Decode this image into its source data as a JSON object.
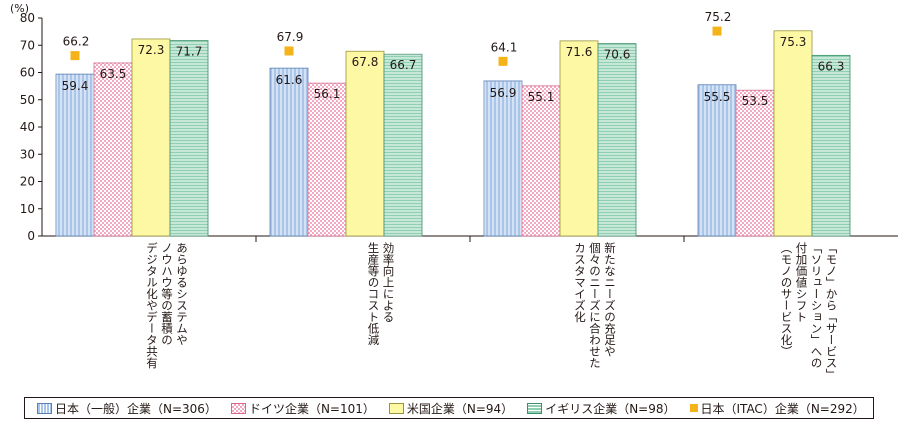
{
  "chart_data": {
    "type": "bar",
    "unit_label": "(%)",
    "ylim": [
      0,
      80
    ],
    "yticks": [
      0,
      10,
      20,
      30,
      40,
      50,
      60,
      70,
      80
    ],
    "categories": [
      [
        "あらゆるシステムや",
        "ノウハウ等の蓄積の",
        "デジタル化やデータ共有"
      ],
      [
        "効率向上による",
        "生産等のコスト低減"
      ],
      [
        "新たなニーズの充足や",
        "個々のニーズに合わせた",
        "カスタマイズ化"
      ],
      [
        "「モノ」から「サービス」",
        "「ソリューション」への",
        "付加価値シフト",
        "（モノのサービス化）"
      ]
    ],
    "series": [
      {
        "name": "日本（一般）企業（N=306）",
        "type": "bar",
        "color": "#a9c6ea",
        "values": [
          59.4,
          61.6,
          56.9,
          55.5
        ]
      },
      {
        "name": "ドイツ企業（N=101）",
        "type": "bar",
        "color": "#fcd7e4",
        "values": [
          63.5,
          56.1,
          55.1,
          53.5
        ]
      },
      {
        "name": "米国企業（N=94）",
        "type": "bar",
        "color": "#fdf8a4",
        "values": [
          72.3,
          67.8,
          71.6,
          75.3
        ]
      },
      {
        "name": "イギリス企業（N=98）",
        "type": "bar",
        "color": "#9fd8bf",
        "values": [
          71.7,
          66.7,
          70.6,
          66.3
        ]
      },
      {
        "name": "日本（ITAC）企業（N=292）",
        "type": "marker",
        "color": "#f5b31a",
        "values": [
          66.2,
          67.9,
          64.1,
          75.2
        ]
      }
    ],
    "legend_position": "bottom",
    "grid": false
  }
}
